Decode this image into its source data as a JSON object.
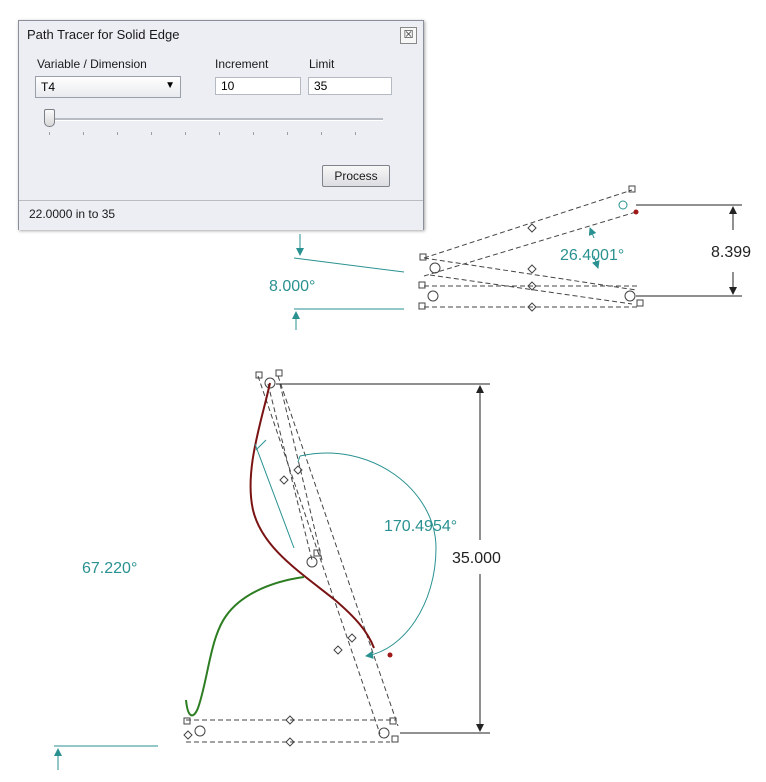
{
  "dialog": {
    "title": "Path Tracer for Solid Edge",
    "close_glyph": "☒",
    "variable_label": "Variable / Dimension",
    "variable_value": "T4",
    "increment_label": "Increment",
    "increment_value": "10",
    "limit_label": "Limit",
    "limit_value": "35",
    "process_label": "Process",
    "status_text": "22.0000 in to 35",
    "slider_position_fraction": 0
  },
  "drawing": {
    "dim_angle_top_left": "8.000°",
    "dim_angle_top_mid": "26.4001°",
    "dim_length_top_right": "8.399",
    "dim_angle_large": "170.4954°",
    "dim_length_vertical": "35.000",
    "dim_angle_left": "67.220°"
  },
  "colors": {
    "dimension_teal": "#2a9191",
    "dimension_black": "#222222",
    "trace_red": "#7a1414",
    "trace_green": "#2d7d22",
    "construction_dash": "#444444"
  }
}
